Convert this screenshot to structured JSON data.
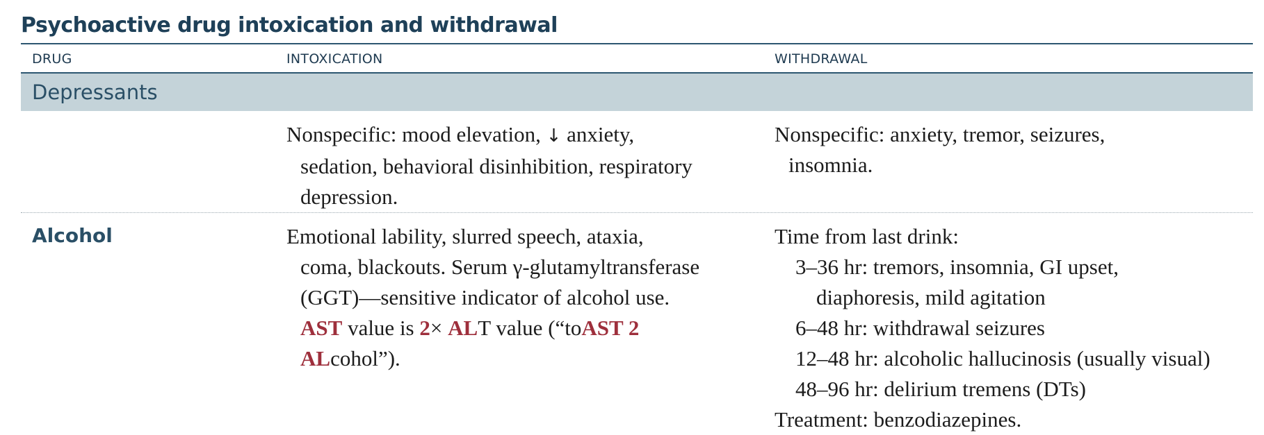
{
  "title": "Psychoactive drug intoxication and withdrawal",
  "headers": {
    "drug": "DRUG",
    "intoxication": "INTOXICATION",
    "withdrawal": "WITHDRAWAL"
  },
  "section": {
    "label": "Depressants"
  },
  "rows": [
    {
      "drug": "",
      "intoxication": {
        "line1_before": "Nonspecific: mood elevation, ",
        "arrow": "↓",
        "line1_after": " anxiety,",
        "line2": "sedation, behavioral disinhibition, respiratory",
        "line3": "depression."
      },
      "withdrawal": {
        "line1": "Nonspecific: anxiety, tremor, seizures,",
        "line2": "insomnia."
      }
    },
    {
      "drug": "Alcohol",
      "intoxication": {
        "line1": "Emotional lability, slurred speech, ataxia,",
        "line2": "coma, blackouts. Serum γ-glutamyltransferase",
        "line3": "(GGT)—sensitive indicator of alcohol use.",
        "line4_hl1": "AST",
        "line4_t1": " value is ",
        "line4_hl2": "2",
        "line4_t2": "× ",
        "line4_hl3": "AL",
        "line4_t3": "T value (“to",
        "line4_hl4": "AST 2",
        "line5_hl": "AL",
        "line5_t": "cohol”)."
      },
      "withdrawal": {
        "intro": "Time from last drink:",
        "item1a": "3–36 hr: tremors, insomnia, GI upset,",
        "item1b": "diaphoresis, mild agitation",
        "item2": "6–48 hr: withdrawal seizures",
        "item3": "12–48 hr: alcoholic hallucinosis (usually visual)",
        "item4": "48–96 hr: delirium tremens (DTs)",
        "treatment": "Treatment: benzodiazepines."
      }
    }
  ]
}
